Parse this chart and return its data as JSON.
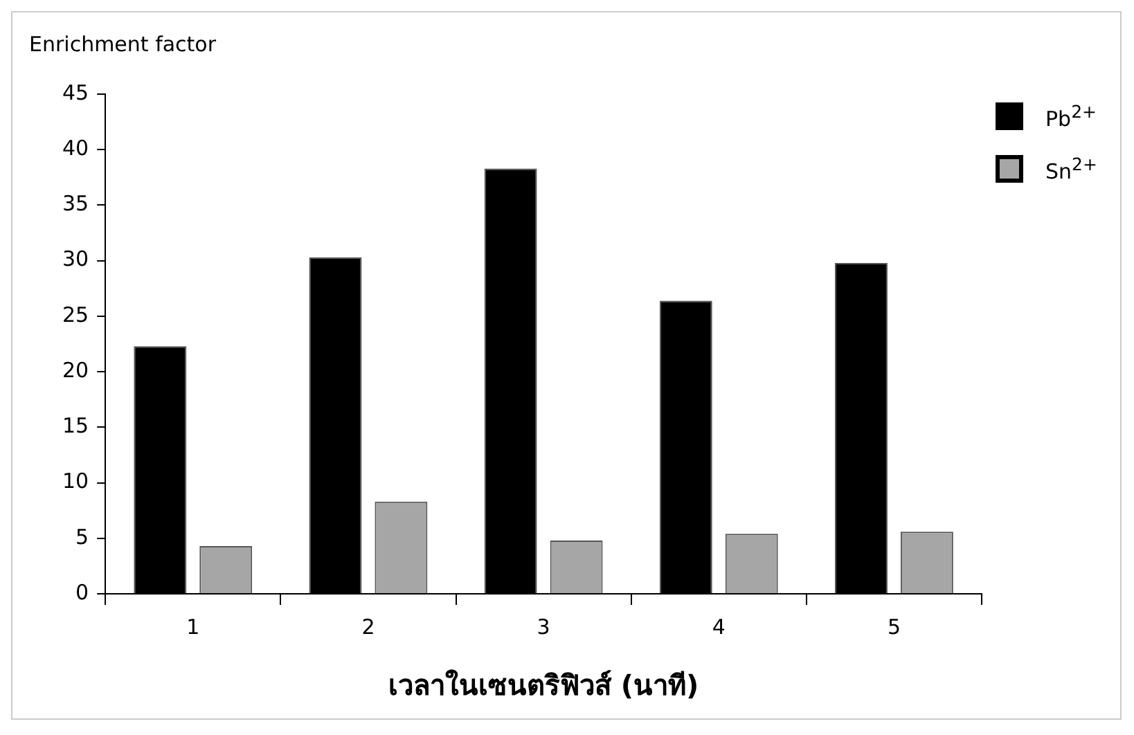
{
  "chart_data": {
    "type": "bar",
    "ylabel": "Enrichment factor",
    "xlabel": "เวลาในเซนตริฟิวส์ (นาที)",
    "categories": [
      "1",
      "2",
      "3",
      "4",
      "5"
    ],
    "series": [
      {
        "name": "Pb$^{2+}$",
        "color": "#000000",
        "values": [
          22.3,
          30.3,
          38.3,
          26.4,
          29.8
        ]
      },
      {
        "name": "Sn$^{2+}$",
        "color": "#a6a6a6",
        "values": [
          4.3,
          8.3,
          4.8,
          5.4,
          5.6
        ]
      }
    ],
    "ylim": [
      0,
      45
    ],
    "yticks": [
      0,
      5,
      10,
      15,
      20,
      25,
      30,
      35,
      40,
      45
    ],
    "grid": false,
    "legend": "top right"
  }
}
